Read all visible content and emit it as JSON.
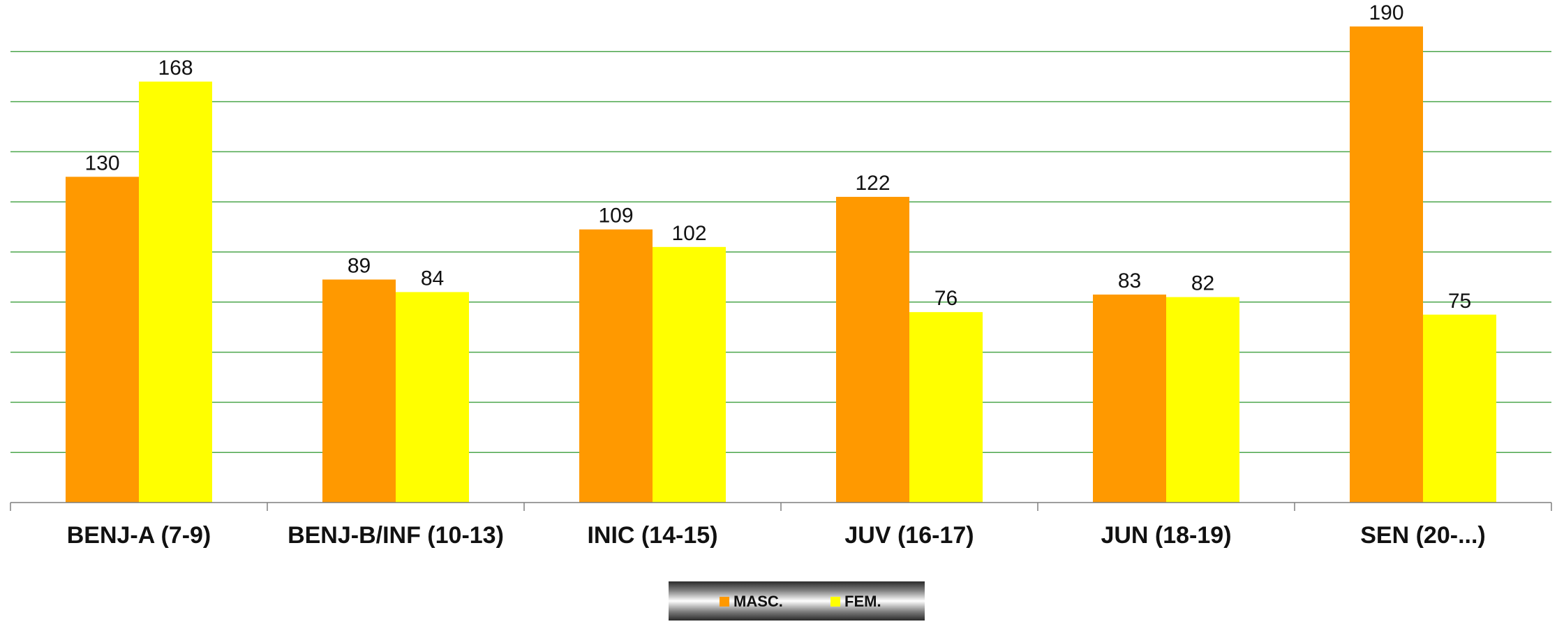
{
  "chart_data": {
    "type": "bar",
    "categories": [
      "BENJ-A (7-9)",
      "BENJ-B/INF (10-13)",
      "INIC (14-15)",
      "JUV (16-17)",
      "JUN (18-19)",
      "SEN (20-...)"
    ],
    "series": [
      {
        "name": "MASC.",
        "values": [
          130,
          89,
          109,
          122,
          83,
          190
        ],
        "color": "#FF9900"
      },
      {
        "name": "FEM.",
        "values": [
          168,
          84,
          102,
          76,
          82,
          75
        ],
        "color": "#FFFF00"
      }
    ],
    "ylim": [
      0,
      200
    ],
    "y_grid_step": 20,
    "grid": true,
    "gridline_color": "#4CA64C",
    "legend_position": "bottom-center"
  }
}
